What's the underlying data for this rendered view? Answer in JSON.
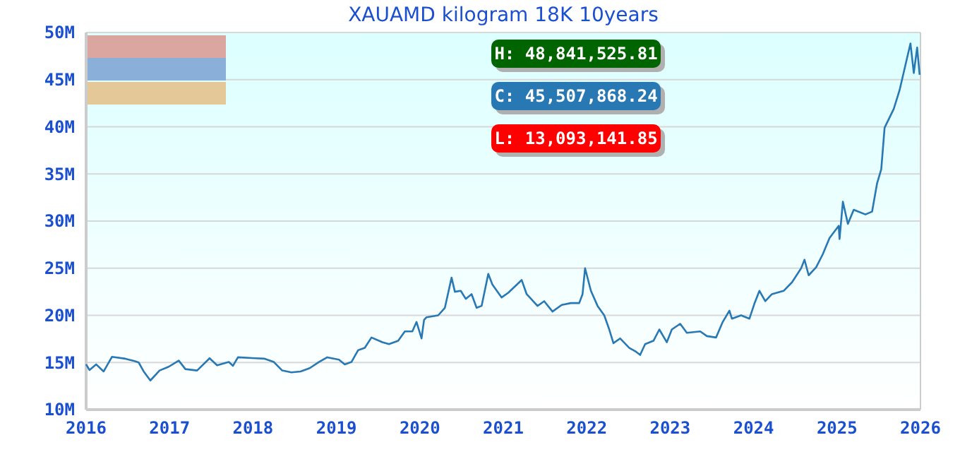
{
  "chart_data": {
    "type": "line",
    "title": "XAUAMD kilogram 18K 10years",
    "x": [
      2016.0,
      2016.04,
      2016.12,
      2016.21,
      2016.31,
      2016.47,
      2016.58,
      2016.63,
      2016.69,
      2016.77,
      2016.88,
      2016.99,
      2017.11,
      2017.19,
      2017.33,
      2017.48,
      2017.57,
      2017.71,
      2017.76,
      2017.82,
      2018.03,
      2018.14,
      2018.25,
      2018.35,
      2018.46,
      2018.57,
      2018.68,
      2018.79,
      2018.89,
      2019.03,
      2019.1,
      2019.18,
      2019.26,
      2019.34,
      2019.42,
      2019.55,
      2019.63,
      2019.74,
      2019.82,
      2019.91,
      2019.96,
      2020.02,
      2020.05,
      2020.08,
      2020.22,
      2020.3,
      2020.38,
      2020.42,
      2020.49,
      2020.55,
      2020.62,
      2020.68,
      2020.74,
      2020.82,
      2020.87,
      2020.98,
      2021.06,
      2021.22,
      2021.28,
      2021.41,
      2021.49,
      2021.59,
      2021.7,
      2021.81,
      2021.91,
      2021.95,
      2021.98,
      2022.05,
      2022.13,
      2022.21,
      2022.27,
      2022.32,
      2022.4,
      2022.51,
      2022.59,
      2022.64,
      2022.7,
      2022.8,
      2022.87,
      2022.96,
      2023.02,
      2023.12,
      2023.2,
      2023.36,
      2023.44,
      2023.55,
      2023.63,
      2023.71,
      2023.74,
      2023.85,
      2023.95,
      2024.01,
      2024.07,
      2024.14,
      2024.22,
      2024.36,
      2024.46,
      2024.57,
      2024.61,
      2024.66,
      2024.75,
      2024.83,
      2024.91,
      2025.02,
      2025.03,
      2025.07,
      2025.13,
      2025.2,
      2025.34,
      2025.42,
      2025.48,
      2025.53,
      2025.57,
      2025.68,
      2025.75,
      2025.88,
      2025.92,
      2025.96,
      2025.99
    ],
    "series": [
      {
        "color": "#2878b4",
        "values": [
          14.8,
          14.2,
          14.8,
          14.05,
          15.6,
          15.4,
          15.15,
          15.0,
          14.05,
          13.09,
          14.15,
          14.55,
          15.2,
          14.3,
          14.15,
          15.45,
          14.7,
          15.05,
          14.65,
          15.55,
          15.45,
          15.4,
          15.05,
          14.15,
          13.95,
          14.05,
          14.4,
          15.05,
          15.55,
          15.3,
          14.8,
          15.05,
          16.3,
          16.55,
          17.65,
          17.15,
          16.95,
          17.3,
          18.3,
          18.3,
          19.3,
          17.55,
          19.5,
          19.8,
          20.0,
          20.8,
          24.0,
          22.5,
          22.6,
          21.75,
          22.25,
          20.8,
          21.0,
          24.4,
          23.25,
          21.9,
          22.4,
          23.75,
          22.25,
          21.0,
          21.5,
          20.4,
          21.1,
          21.3,
          21.3,
          22.25,
          25.0,
          22.6,
          21.0,
          20.0,
          18.5,
          17.05,
          17.55,
          16.55,
          16.15,
          15.8,
          16.95,
          17.3,
          18.5,
          17.15,
          18.5,
          19.1,
          18.15,
          18.3,
          17.8,
          17.65,
          19.3,
          20.5,
          19.65,
          20.0,
          19.65,
          21.25,
          22.6,
          21.5,
          22.25,
          22.6,
          23.5,
          25.0,
          25.9,
          24.25,
          25.1,
          26.5,
          28.2,
          29.5,
          28.1,
          32.05,
          29.7,
          31.2,
          30.7,
          31.0,
          34.0,
          35.5,
          39.9,
          41.9,
          43.9,
          48.84,
          45.7,
          48.4,
          45.51
        ]
      }
    ],
    "xlim": [
      2016,
      2026
    ],
    "xticks": [
      2016,
      2017,
      2018,
      2019,
      2020,
      2021,
      2022,
      2023,
      2024,
      2025,
      2026
    ],
    "ylim": [
      10,
      50
    ],
    "yticks": [
      {
        "value": 10,
        "label": "10M"
      },
      {
        "value": 15,
        "label": "15M"
      },
      {
        "value": 20,
        "label": "20M"
      },
      {
        "value": 25,
        "label": "25M"
      },
      {
        "value": 30,
        "label": "30M"
      },
      {
        "value": 35,
        "label": "35M"
      },
      {
        "value": 40,
        "label": "40M"
      },
      {
        "value": 45,
        "label": "45M"
      },
      {
        "value": 50,
        "label": "50M"
      }
    ],
    "grid": "y",
    "annotations": [
      "H: 48,841,525.81",
      "C: 45,507,868.24",
      "L: 13,093,141.85"
    ]
  }
}
